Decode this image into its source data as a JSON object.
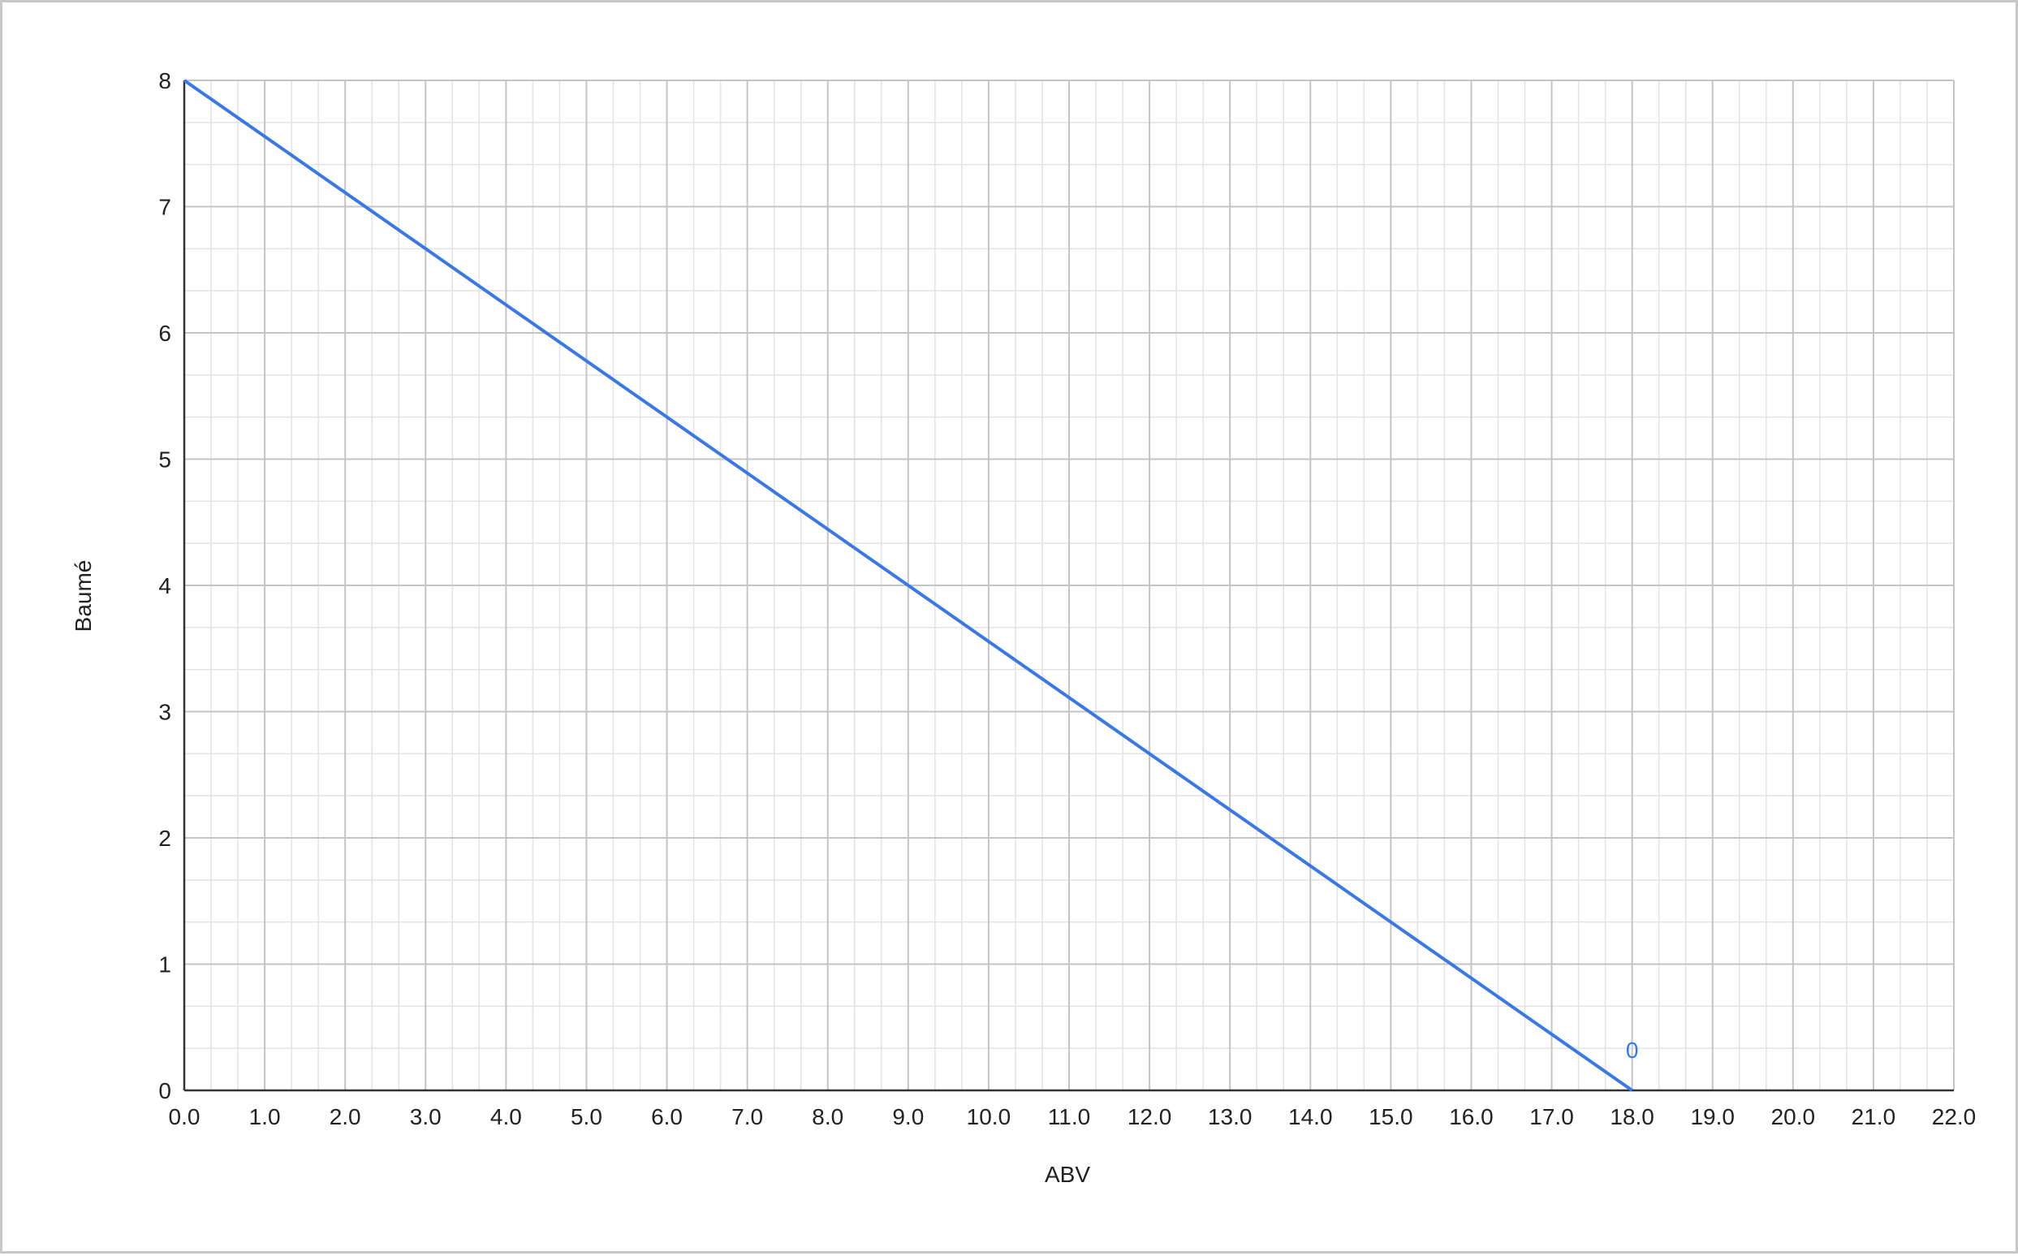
{
  "chart_data": {
    "type": "line",
    "title": "",
    "xlabel": "ABV",
    "ylabel": "Baumé",
    "xlim": [
      0,
      22
    ],
    "ylim": [
      0,
      8
    ],
    "x_ticks": [
      "0.0",
      "1.0",
      "2.0",
      "3.0",
      "4.0",
      "5.0",
      "6.0",
      "7.0",
      "8.0",
      "9.0",
      "10.0",
      "11.0",
      "12.0",
      "13.0",
      "14.0",
      "15.0",
      "16.0",
      "17.0",
      "18.0",
      "19.0",
      "20.0",
      "21.0",
      "22.0"
    ],
    "y_ticks": [
      "0",
      "1",
      "2",
      "3",
      "4",
      "5",
      "6",
      "7",
      "8"
    ],
    "grid": true,
    "minor_grid": true,
    "legend": "none",
    "series": [
      {
        "color": "#3b78e7",
        "x": [
          0.0,
          18.0
        ],
        "y": [
          8,
          0
        ]
      }
    ],
    "annotations": [
      {
        "text": "0",
        "x": 18.0,
        "y": 0,
        "color": "#3b78e7"
      }
    ]
  }
}
